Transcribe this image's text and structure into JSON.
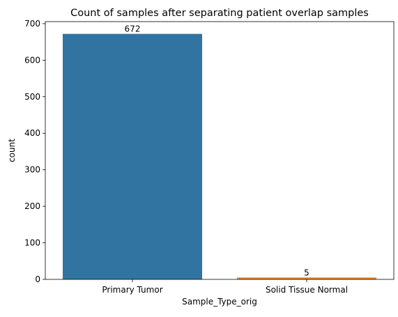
{
  "chart_data": {
    "type": "bar",
    "title": "Count of samples after separating patient overlap samples",
    "xlabel": "Sample_Type_orig",
    "ylabel": "count",
    "categories": [
      "Primary Tumor",
      "Solid Tissue Normal"
    ],
    "values": [
      672,
      5
    ],
    "data_labels": [
      "672",
      "5"
    ],
    "colors": [
      "#3274a1",
      "#e1812c"
    ],
    "ylim": [
      0,
      705.6
    ],
    "yticks": [
      0,
      100,
      200,
      300,
      400,
      500,
      600,
      700
    ],
    "grid": false,
    "legend": "none"
  }
}
